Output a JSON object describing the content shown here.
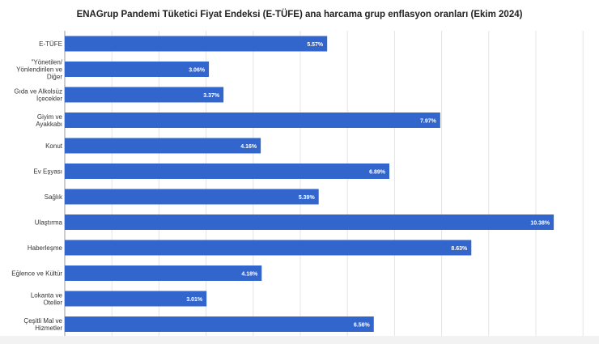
{
  "chart_data": {
    "type": "bar",
    "orientation": "horizontal",
    "title": "ENAGrup Pandemi Tüketici Fiyat Endeksi (E-TÜFE) ana harcama grup enflasyon oranları (Ekim 2024)",
    "xlabel": "",
    "ylabel": "",
    "xlim": [
      0,
      11
    ],
    "grid": true,
    "categories": [
      [
        "E-TÜFE"
      ],
      [
        "\"Yönetilen/",
        "Yönlendirilen ve",
        "Diğer"
      ],
      [
        "Gıda ve Alkolsüz",
        "İçecekler"
      ],
      [
        "Giyim ve",
        "Ayakkabı"
      ],
      [
        "Konut"
      ],
      [
        "Ev Eşyası"
      ],
      [
        "Sağlık"
      ],
      [
        "Ulaştırma"
      ],
      [
        "Haberleşme"
      ],
      [
        "Eğlence ve Kültür"
      ],
      [
        "Lokanta ve",
        "Oteller"
      ],
      [
        "Çeşitli Mal ve",
        "Hizmetler"
      ]
    ],
    "values": [
      5.57,
      3.06,
      3.37,
      7.97,
      4.16,
      6.89,
      5.39,
      10.38,
      8.63,
      4.18,
      3.01,
      6.56
    ],
    "data_labels": [
      "5.57%",
      "3.06%",
      "3.37%",
      "7.97%",
      "4.16%",
      "6.89%",
      "5.39%",
      "10.38%",
      "8.63%",
      "4.18%",
      "3.01%",
      "6.56%"
    ],
    "bar_color": "#3366cc"
  }
}
